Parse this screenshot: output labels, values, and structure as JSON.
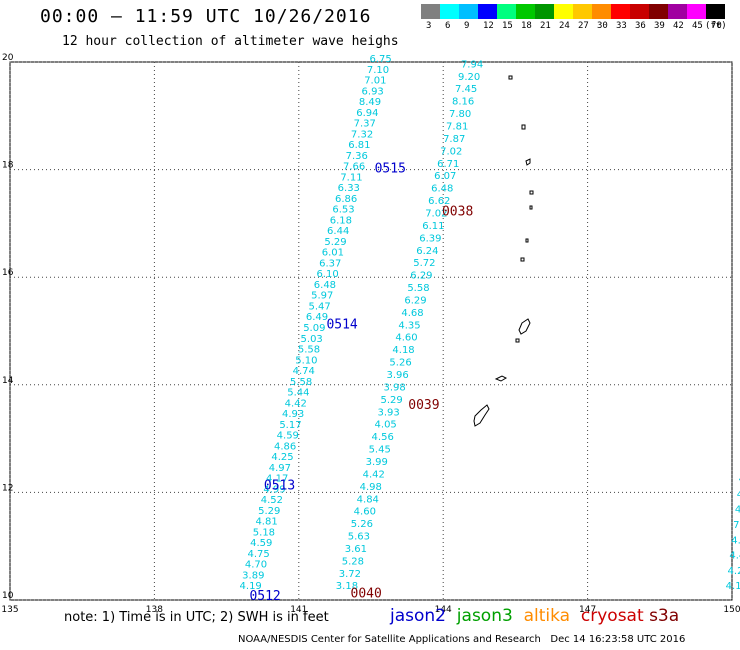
{
  "header": {
    "title": "00:00 – 11:59 UTC 10/26/2016",
    "subtitle": "12 hour collection of altimeter wave heighs"
  },
  "colorbar": {
    "unit": "(ft)",
    "labels": [
      "3",
      "6",
      "9",
      "12",
      "15",
      "18",
      "21",
      "24",
      "27",
      "30",
      "33",
      "36",
      "39",
      "42",
      "45",
      "70"
    ],
    "colors": [
      "#808080",
      "#00ffff",
      "#00bfff",
      "#0000ff",
      "#00ff7f",
      "#00c800",
      "#009600",
      "#ffff00",
      "#ffc800",
      "#ff8c00",
      "#ff0000",
      "#c80000",
      "#800000",
      "#a000a0",
      "#ff00ff",
      "#000000"
    ]
  },
  "axes": {
    "lon_labels": [
      "135",
      "138",
      "141",
      "144",
      "147",
      "150"
    ],
    "lat_labels": [
      "20",
      "18",
      "16",
      "14",
      "12",
      "10"
    ],
    "lon_range": [
      135,
      150
    ],
    "lat_range": [
      10,
      20
    ]
  },
  "tracks": [
    {
      "id": "track1",
      "color": "#00c8dc",
      "start": {
        "lon": 140.0,
        "lat": 10.2
      },
      "end": {
        "lon": 142.7,
        "lat": 20.0
      },
      "values": [
        "4.19",
        "3.89",
        "4.70",
        "4.75",
        "4.59",
        "5.18",
        "4.81",
        "5.29",
        "4.52",
        "4.99",
        "4.17",
        "4.97",
        "4.25",
        "4.86",
        "4.59",
        "5.17",
        "4.93",
        "4.42",
        "5.44",
        "5.58",
        "4.74",
        "5.10",
        "5.58",
        "5.03",
        "5.09",
        "6.49",
        "5.47",
        "5.97",
        "6.48",
        "6.10",
        "6.37",
        "6.01",
        "5.29",
        "6.44",
        "6.18",
        "6.53",
        "6.86",
        "6.33",
        "7.11",
        "7.66",
        "7.36",
        "6.81",
        "7.32",
        "7.37",
        "6.94",
        "8.49",
        "6.93",
        "7.01",
        "7.10",
        "6.75"
      ]
    },
    {
      "id": "track2",
      "color": "#00c8dc",
      "start": {
        "lon": 142.0,
        "lat": 10.2
      },
      "end": {
        "lon": 144.6,
        "lat": 19.9
      },
      "values": [
        "3.18",
        "3.72",
        "5.28",
        "3.61",
        "5.63",
        "5.26",
        "4.60",
        "4.84",
        "4.98",
        "4.42",
        "3.99",
        "5.45",
        "4.56",
        "4.05",
        "3.93",
        "5.29",
        "3.98",
        "3.96",
        "5.26",
        "4.18",
        "4.60",
        "4.35",
        "4.68",
        "6.29",
        "5.58",
        "6.29",
        "5.72",
        "6.24",
        "6.39",
        "6.11",
        "7.02",
        "6.62",
        "6.48",
        "6.07",
        "6.71",
        "7.02",
        "7.87",
        "7.81",
        "7.80",
        "8.16",
        "7.45",
        "9.20",
        "7.94"
      ]
    },
    {
      "id": "track3",
      "color": "#00c8dc",
      "start": {
        "lon": 150.1,
        "lat": 10.2
      },
      "end": {
        "lon": 150.6,
        "lat": 13.9
      },
      "values": [
        "4.19",
        "4.26",
        "4.41",
        "4.22",
        "7.54",
        "4.21",
        "4.25",
        "4.73",
        "4.42",
        "4.00",
        "4.6",
        "4.7",
        "4.4",
        "5"
      ]
    }
  ],
  "pass_labels": [
    {
      "text": "0515",
      "color": "#0000cc",
      "lon": 142.9,
      "lat": 17.95
    },
    {
      "text": "0514",
      "color": "#0000cc",
      "lon": 141.9,
      "lat": 15.05
    },
    {
      "text": "0513",
      "color": "#0000cc",
      "lon": 140.6,
      "lat": 12.05
    },
    {
      "text": "0512",
      "color": "#0000cc",
      "lon": 140.3,
      "lat": 10.0
    },
    {
      "text": "0038",
      "color": "#800000",
      "lon": 144.3,
      "lat": 17.15
    },
    {
      "text": "0039",
      "color": "#800000",
      "lon": 143.6,
      "lat": 13.55
    },
    {
      "text": "0040",
      "color": "#800000",
      "lon": 142.4,
      "lat": 10.05
    }
  ],
  "footer": {
    "note": "note: 1) Time is in UTC; 2) SWH is in feet",
    "satellites": [
      {
        "name": "jason2",
        "color": "#0000cc"
      },
      {
        "name": "jason3",
        "color": "#00a000"
      },
      {
        "name": "altika",
        "color": "#ff8c00"
      },
      {
        "name": "cryosat",
        "color": "#cc0000"
      },
      {
        "name": "s3a",
        "color": "#800000"
      }
    ],
    "credit": "NOAA/NESDIS Center for Satellite Applications and Research   Dec 14 16:23:58 UTC 2016"
  }
}
